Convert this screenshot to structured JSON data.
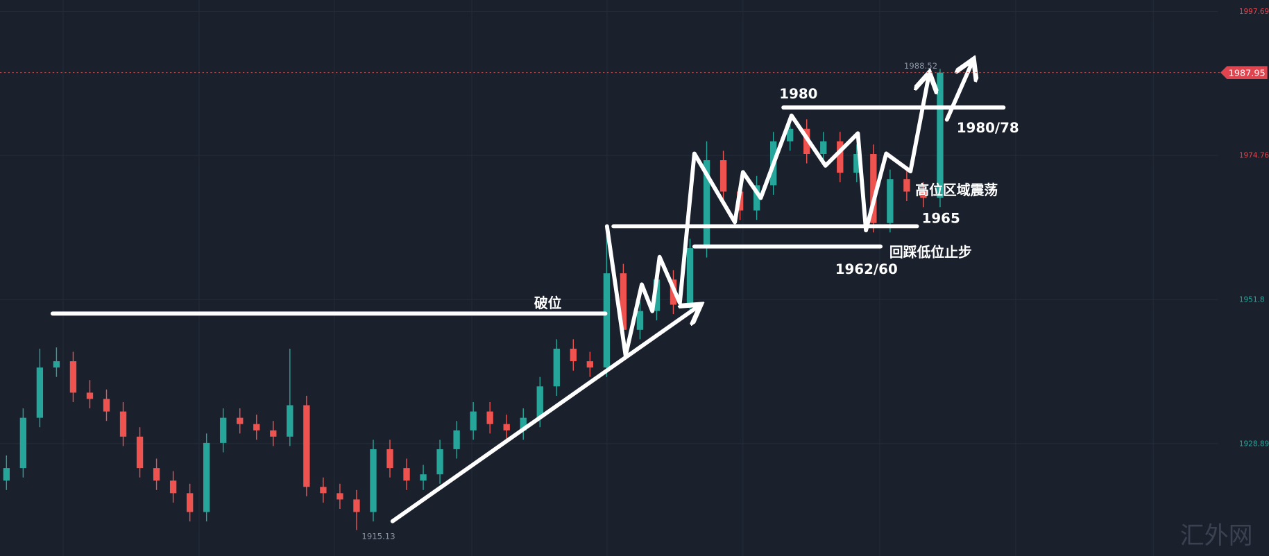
{
  "chart_data": {
    "type": "candlestick",
    "up_color": "#26a69a",
    "down_color": "#ef5350",
    "ylim": [
      1911,
      1999.5
    ],
    "yticks": [
      1997.69,
      1974.76,
      1951.8,
      1928.89
    ],
    "ytick_colors": [
      "#e0454f",
      "#e0454f",
      "#26a69a",
      "#26a69a"
    ],
    "grid": true,
    "candles": [
      [
        1923,
        1927,
        1921.5,
        1925
      ],
      [
        1925,
        1934.5,
        1923.5,
        1933
      ],
      [
        1933,
        1944,
        1931.5,
        1941
      ],
      [
        1941,
        1944.2,
        1939.5,
        1942
      ],
      [
        1942,
        1943.5,
        1935.5,
        1937
      ],
      [
        1937,
        1939,
        1934.5,
        1936
      ],
      [
        1936,
        1937.5,
        1932.5,
        1934
      ],
      [
        1934,
        1935.5,
        1928.5,
        1930
      ],
      [
        1930,
        1931.5,
        1923.5,
        1925
      ],
      [
        1925,
        1926.5,
        1921.5,
        1923
      ],
      [
        1923,
        1924.5,
        1919.5,
        1921
      ],
      [
        1921,
        1922.5,
        1916.5,
        1918
      ],
      [
        1918,
        1930.5,
        1916.5,
        1929
      ],
      [
        1929,
        1934.5,
        1927.5,
        1933
      ],
      [
        1933,
        1934.5,
        1930.5,
        1932
      ],
      [
        1932,
        1933.5,
        1929.5,
        1931
      ],
      [
        1931,
        1932.5,
        1928.5,
        1930
      ],
      [
        1930,
        1944,
        1928.5,
        1935
      ],
      [
        1935,
        1936.5,
        1920.5,
        1922
      ],
      [
        1922,
        1923.5,
        1919.5,
        1921
      ],
      [
        1921,
        1922.5,
        1918.5,
        1920
      ],
      [
        1920,
        1921.5,
        1915.13,
        1918
      ],
      [
        1918,
        1929.5,
        1916.5,
        1928
      ],
      [
        1928,
        1929.5,
        1923.5,
        1925
      ],
      [
        1925,
        1926.5,
        1921.5,
        1923
      ],
      [
        1923,
        1925.5,
        1921.5,
        1924
      ],
      [
        1924,
        1929.5,
        1922.5,
        1928
      ],
      [
        1928,
        1932.5,
        1926.5,
        1931
      ],
      [
        1931,
        1935.5,
        1929.5,
        1934
      ],
      [
        1934,
        1935.5,
        1930.5,
        1932
      ],
      [
        1932,
        1933.5,
        1929.5,
        1931
      ],
      [
        1931,
        1934.5,
        1929.5,
        1933
      ],
      [
        1933,
        1939.5,
        1931.5,
        1938
      ],
      [
        1938,
        1945.5,
        1936.5,
        1944
      ],
      [
        1944,
        1945.5,
        1940.5,
        1942
      ],
      [
        1942,
        1943.5,
        1939.5,
        1941
      ],
      [
        1941,
        1962,
        1939.5,
        1956
      ],
      [
        1956,
        1957.5,
        1945.5,
        1947
      ],
      [
        1947,
        1951.5,
        1945.5,
        1950
      ],
      [
        1950,
        1956.5,
        1948.5,
        1955
      ],
      [
        1955,
        1956.5,
        1949.5,
        1951
      ],
      [
        1951,
        1961.5,
        1949.5,
        1960
      ],
      [
        1960,
        1977,
        1958.5,
        1974
      ],
      [
        1974,
        1975.5,
        1967.5,
        1969
      ],
      [
        1969,
        1970.5,
        1964.5,
        1966
      ],
      [
        1966,
        1971.5,
        1964.5,
        1970
      ],
      [
        1970,
        1978.5,
        1968.5,
        1977
      ],
      [
        1977,
        1980.5,
        1975.5,
        1979
      ],
      [
        1979,
        1980.5,
        1973.5,
        1975
      ],
      [
        1975,
        1978.5,
        1973.5,
        1977
      ],
      [
        1977,
        1978.5,
        1970.5,
        1972
      ],
      [
        1972,
        1976.5,
        1970.5,
        1975
      ],
      [
        1975,
        1976.5,
        1962.5,
        1964
      ],
      [
        1964,
        1972.5,
        1962.5,
        1971
      ],
      [
        1971,
        1972.5,
        1967.5,
        1969
      ],
      [
        1969,
        1970.5,
        1966.5,
        1968
      ],
      [
        1968,
        1988.52,
        1966.5,
        1987.95
      ]
    ],
    "last_price": 1987.95,
    "last_price_label": "1987.95",
    "high_label": "1988.52",
    "low_label": "1915.13",
    "annotations": [
      "破位",
      "1980",
      "1980/78",
      "高位区域震荡",
      "1965",
      "回踩低位止步",
      "1962/60"
    ],
    "watermark": "汇外网"
  }
}
